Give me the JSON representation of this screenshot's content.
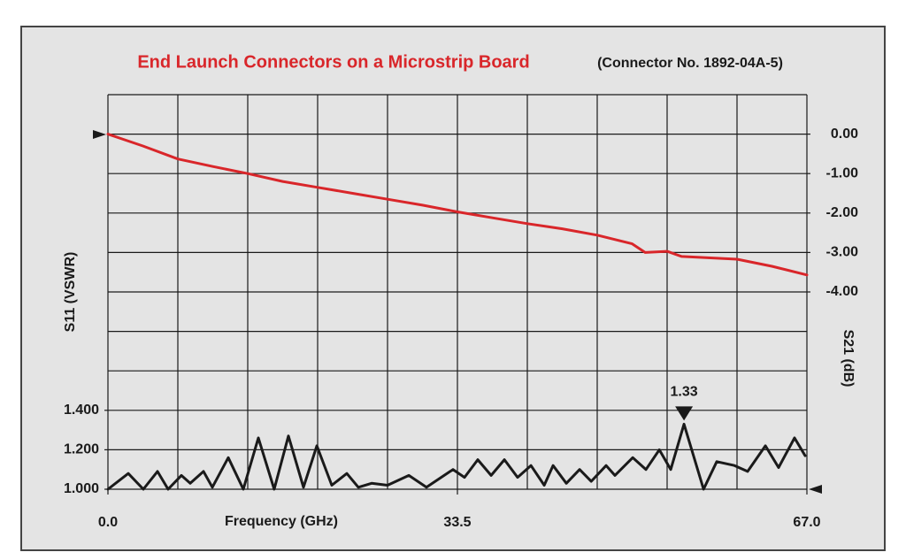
{
  "chart_data": {
    "type": "line",
    "title": "End Launch Connectors on a Microstrip Board",
    "subtitle": "(Connector No. 1892-04A-5)",
    "x_label": "Frequency (GHz)",
    "y_label": "S11 (VSWR)",
    "y2_label": "S21 (dB)",
    "xlim": [
      0,
      67
    ],
    "xticks": [
      {
        "value": 0,
        "label": "0.0"
      },
      33.5,
      {
        "value": 67,
        "label": "67.0"
      }
    ],
    "ylim": [
      1.0,
      3.0
    ],
    "yticks": [
      {
        "value": 1.0,
        "label": "1.000"
      },
      {
        "value": 1.2,
        "label": "1.200"
      },
      {
        "value": 1.4,
        "label": "1.400"
      }
    ],
    "y2lim": [
      -9,
      1
    ],
    "y2ticks": [
      {
        "value": 0,
        "label": "0.00"
      },
      {
        "value": -1,
        "label": "-1.00"
      },
      {
        "value": -2,
        "label": "-2.00"
      },
      {
        "value": -3,
        "label": "-3.00"
      },
      {
        "value": -4,
        "label": "-4.00"
      }
    ],
    "grid": true,
    "series": [
      {
        "name": "S21",
        "color": "#d9262a",
        "axis": "y2",
        "x": [
          0,
          3.35,
          6.7,
          10.05,
          13.4,
          16.75,
          20.1,
          23.45,
          26.8,
          30.15,
          33.5,
          36.85,
          40.2,
          43.55,
          46.9,
          50.25,
          51.5,
          53.6,
          55.0,
          60.3,
          63.65,
          67
        ],
        "values": [
          0,
          -0.3,
          -0.63,
          -0.82,
          -1.0,
          -1.2,
          -1.35,
          -1.5,
          -1.65,
          -1.8,
          -1.97,
          -2.12,
          -2.27,
          -2.4,
          -2.56,
          -2.78,
          -3.0,
          -2.97,
          -3.1,
          -3.17,
          -3.35,
          -3.57
        ]
      },
      {
        "name": "S11",
        "color": "#1a1a1a",
        "axis": "y",
        "x": [
          0,
          1.95,
          3.39,
          4.75,
          5.77,
          7.04,
          7.89,
          9.16,
          10.01,
          11.53,
          12.98,
          14.42,
          15.94,
          17.3,
          18.74,
          20.02,
          21.46,
          22.9,
          24.0,
          25.27,
          26.8,
          28.84,
          30.53,
          33.08,
          34.18,
          35.45,
          36.73,
          38.0,
          39.27,
          40.55,
          41.82,
          42.67,
          43.94,
          45.21,
          46.32,
          47.76,
          48.6,
          50.3,
          51.57,
          52.85,
          53.95,
          55.22,
          57.09,
          58.36,
          60.05,
          61.32,
          63.02,
          64.29,
          65.81,
          66.83
        ],
        "values": [
          1.0,
          1.08,
          1.0,
          1.09,
          1.0,
          1.07,
          1.03,
          1.09,
          1.01,
          1.16,
          1.0,
          1.26,
          1.0,
          1.27,
          1.01,
          1.22,
          1.02,
          1.08,
          1.01,
          1.03,
          1.02,
          1.07,
          1.01,
          1.1,
          1.06,
          1.15,
          1.07,
          1.15,
          1.06,
          1.12,
          1.02,
          1.12,
          1.03,
          1.1,
          1.04,
          1.12,
          1.07,
          1.16,
          1.1,
          1.2,
          1.1,
          1.33,
          1.0,
          1.14,
          1.12,
          1.09,
          1.22,
          1.11,
          1.26,
          1.17
        ]
      }
    ],
    "annotations": [
      {
        "text": "1.33",
        "x": 55.22,
        "y": 1.33
      }
    ]
  }
}
